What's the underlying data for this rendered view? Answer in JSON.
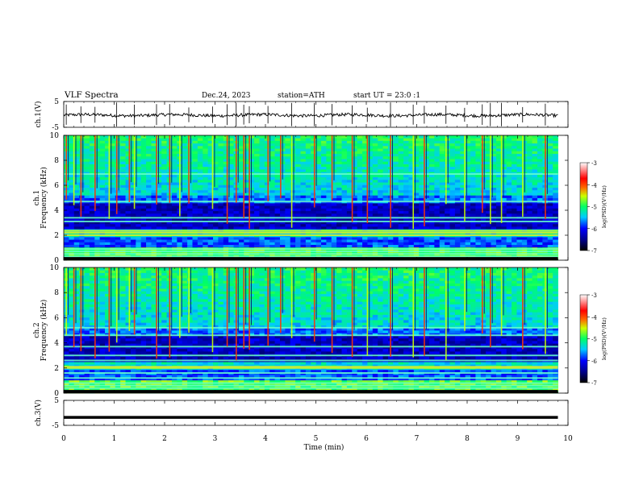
{
  "header": {
    "title": "VLF Spectra",
    "date": "Dec.24, 2023",
    "station": "station=ATH",
    "start": "start UT =   23:0 :1"
  },
  "chart_data": [
    {
      "type": "line",
      "name": "ch1-waveform",
      "ylabel": "ch.1(V)",
      "yticks": [
        "5",
        "-5"
      ],
      "ylim": [
        -5,
        5
      ],
      "x_range_min": [
        0,
        9.8
      ],
      "baseline": -0.3,
      "noise_amplitude": 0.6,
      "spikes": [
        0.05,
        0.34,
        0.62,
        1.05,
        1.4,
        1.84,
        2.1,
        2.48,
        2.95,
        3.24,
        3.42,
        3.57,
        3.68,
        4.05,
        4.52,
        4.97,
        5.32,
        5.72,
        6.02,
        6.48,
        6.93,
        7.15,
        7.58,
        7.95,
        8.3,
        8.46,
        8.68,
        9.1,
        9.55
      ]
    },
    {
      "type": "heatmap",
      "name": "ch1-spectrogram",
      "ylabel": "ch.1 Frequency (kHz)",
      "yticks": [
        "0",
        "2",
        "4",
        "6",
        "8",
        "10"
      ],
      "ylim": [
        0,
        10
      ],
      "x_range_min": [
        0,
        9.8
      ],
      "colorbar": {
        "label": "log(PSD)(V²/Hz)",
        "ticks": [
          "-3",
          "-4",
          "-5",
          "-6",
          "-7"
        ],
        "range": [
          -7,
          -3
        ]
      },
      "bands_khz": [
        0.3,
        0.5,
        0.7,
        0.9,
        2.0,
        2.2,
        2.35,
        3.1,
        3.4,
        4.7,
        6.9
      ],
      "sferic_times_min": [
        0.05,
        0.2,
        0.34,
        0.62,
        0.9,
        1.05,
        1.3,
        1.4,
        1.84,
        2.1,
        2.3,
        2.48,
        2.95,
        3.24,
        3.42,
        3.57,
        3.68,
        4.05,
        4.3,
        4.52,
        4.97,
        5.32,
        5.72,
        6.02,
        6.48,
        6.93,
        7.15,
        7.58,
        7.95,
        8.3,
        8.46,
        8.68,
        9.1,
        9.55
      ]
    },
    {
      "type": "heatmap",
      "name": "ch2-spectrogram",
      "ylabel": "ch.2 Frequency (kHz)",
      "yticks": [
        "0",
        "2",
        "4",
        "6",
        "8",
        "10"
      ],
      "ylim": [
        0,
        10
      ],
      "x_range_min": [
        0,
        9.8
      ],
      "colorbar": {
        "label": "log(PSD)(V²/Hz)",
        "ticks": [
          "-3",
          "-4",
          "-5",
          "-6",
          "-7"
        ],
        "range": [
          -7,
          -3
        ]
      },
      "bands_khz": [
        0.2,
        0.4,
        0.6,
        0.8,
        1.2,
        1.6,
        2.0,
        2.1,
        2.6,
        3.0,
        3.7,
        4.6,
        5.2
      ],
      "sferic_times_min": [
        0.05,
        0.2,
        0.34,
        0.62,
        0.9,
        1.05,
        1.3,
        1.4,
        1.84,
        2.1,
        2.3,
        2.48,
        2.95,
        3.24,
        3.42,
        3.57,
        3.68,
        4.05,
        4.3,
        4.52,
        4.97,
        5.32,
        5.72,
        6.02,
        6.48,
        6.93,
        7.15,
        7.58,
        7.95,
        8.3,
        8.46,
        8.68,
        9.1,
        9.55
      ]
    },
    {
      "type": "line",
      "name": "ch3-waveform",
      "ylabel": "ch.3(V)",
      "yticks": [
        "5",
        "-5"
      ],
      "ylim": [
        -5,
        5
      ],
      "x_range_min": [
        0,
        9.8
      ],
      "baseline": -1.8
    }
  ],
  "x_axis": {
    "label": "Time (min)",
    "ticks": [
      "0",
      "1",
      "2",
      "3",
      "4",
      "5",
      "6",
      "7",
      "8",
      "9",
      "10"
    ],
    "xlim": [
      0,
      10
    ]
  }
}
